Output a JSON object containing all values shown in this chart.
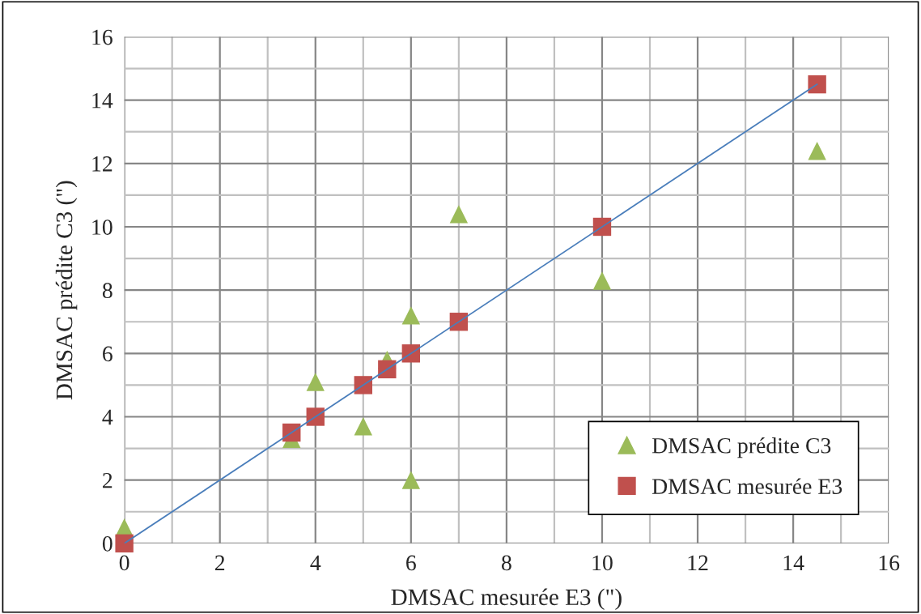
{
  "chart_data": {
    "type": "scatter",
    "xlabel": "DMSAC mesurée E3 (\")",
    "ylabel": "DMSAC prédite C3 (\")",
    "xlim": [
      0,
      16
    ],
    "ylim": [
      0,
      16
    ],
    "xticks": [
      0,
      {
        "value": 1,
        "label": null
      },
      2,
      {
        "value": 3,
        "label": null
      },
      4,
      {
        "value": 5,
        "label": null
      },
      6,
      {
        "value": 7,
        "label": null
      },
      8,
      {
        "value": 9,
        "label": null
      },
      10,
      {
        "value": 11,
        "label": null
      },
      12,
      {
        "value": 13,
        "label": null
      },
      14,
      {
        "value": 15,
        "label": null
      },
      16
    ],
    "yticks": [
      0,
      {
        "value": 1,
        "label": null
      },
      2,
      {
        "value": 3,
        "label": null
      },
      4,
      {
        "value": 5,
        "label": null
      },
      6,
      {
        "value": 7,
        "label": null
      },
      8,
      {
        "value": 9,
        "label": null
      },
      10,
      {
        "value": 11,
        "label": null
      },
      12,
      {
        "value": 13,
        "label": null
      },
      14,
      {
        "value": 15,
        "label": null
      },
      16
    ],
    "grid": true,
    "legend": "bottom right",
    "series": [
      {
        "type": "line",
        "color": "#4a7ebb",
        "marker": "none",
        "line_style": "solid",
        "x": [
          0,
          14.5
        ],
        "values": [
          0,
          14.5
        ]
      },
      {
        "name": "DMSAC prédite C3",
        "color": "#9bbb59",
        "marker": "triangle",
        "x": [
          0,
          3.5,
          4,
          5,
          5.5,
          6,
          6,
          7,
          10,
          14.5
        ],
        "values": [
          0.5,
          3.3,
          5.1,
          3.7,
          5.8,
          7.2,
          2.0,
          10.4,
          8.3,
          12.4
        ]
      },
      {
        "name": "DMSAC mesurée E3",
        "color": "#c0504d",
        "marker": "square",
        "x": [
          0,
          3.5,
          4,
          5,
          5.5,
          6,
          7,
          10,
          14.5
        ],
        "values": [
          0,
          3.5,
          4,
          5,
          5.5,
          6,
          7,
          10,
          14.5
        ]
      }
    ]
  }
}
